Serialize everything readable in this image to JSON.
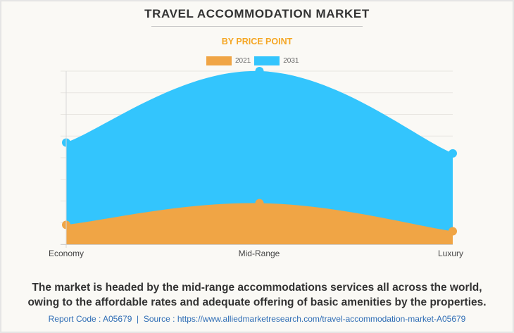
{
  "header": {
    "title": "TRAVEL ACCOMMODATION MARKET",
    "subtitle": "BY PRICE POINT"
  },
  "legend": [
    {
      "label": "2021",
      "color": "#f0a545"
    },
    {
      "label": "2031",
      "color": "#33c5fd"
    }
  ],
  "chart_data": {
    "type": "area",
    "title": "TRAVEL ACCOMMODATION MARKET",
    "subtitle": "BY PRICE POINT",
    "categories": [
      "Economy",
      "Mid-Range",
      "Luxury"
    ],
    "series": [
      {
        "name": "2021",
        "color": "#f0a545",
        "values": [
          0.9,
          1.9,
          0.6
        ]
      },
      {
        "name": "2031",
        "color": "#33c5fd",
        "values": [
          4.7,
          8.0,
          4.2
        ]
      }
    ],
    "xlabel": "",
    "ylabel": "",
    "ylim": [
      0,
      8
    ],
    "y_axis_labels_visible": false,
    "grid": true,
    "legend_position": "top",
    "smooth": true
  },
  "caption": {
    "line1": "The market is headed by the mid-range accommodations services all across the world,",
    "line2": "owing to the affordable rates and adequate offering of basic amenities by the properties."
  },
  "footer": {
    "text": "Report Code : A05679  |  Source : https://www.alliedmarketresearch.com/travel-accommodation-market-A05679"
  }
}
